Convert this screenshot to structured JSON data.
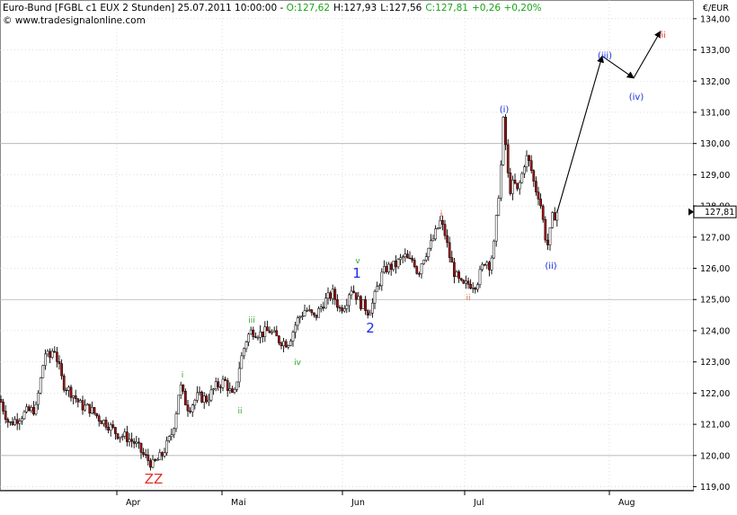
{
  "header": {
    "title_part": "Euro-Bund [FGBL c1 EUX  2 Stunden] 25.07.2011 10:00:00 - ",
    "ohlc_open": "O:127,62",
    "ohlc_high": "H:127,93",
    "ohlc_low": "L:127,56",
    "ohlc_close": "C:127,81",
    "change": "+0,26 +0,20%",
    "watermark": "© www.tradesignalonline.com"
  },
  "colors": {
    "up_green": "#19a319",
    "candle_up": "#ffffff",
    "candle_down": "#a01010",
    "wave_blue": "#1a2ee0",
    "wave_red": "#e0302a",
    "wave_green": "#2aa62a",
    "wave_orange": "#e06a3a",
    "grid": "#c9c9c9",
    "ref_lines": "#b0b0b0"
  },
  "axis": {
    "unit": "€/EUR",
    "last_price": "127,81",
    "y_ticks": [
      "134,00",
      "133,00",
      "132,00",
      "131,00",
      "130,00",
      "129,00",
      "128,00",
      "127,00",
      "126,00",
      "125,00",
      "124,00",
      "123,00",
      "122,00",
      "121,00",
      "120,00",
      "119,00"
    ],
    "x_ticks": [
      "Apr",
      "Mai",
      "Jun",
      "Jul",
      "Aug"
    ]
  },
  "wave_labels": {
    "zz": "ZZ",
    "green_i": "i",
    "green_ii": "ii",
    "green_iii": "iii",
    "green_iv": "iv",
    "green_v": "v",
    "blue_1": "1",
    "blue_2": "2",
    "red_i": "i",
    "red_ii": "ii",
    "red_iii": "iii",
    "blue_i": "(i)",
    "blue_ii": "(ii)",
    "blue_iii": "(iii)",
    "blue_iv": "(iv)"
  },
  "chart_data": {
    "type": "candlestick",
    "instrument": "Euro-Bund [FGBL c1 EUX  2 Stunden]",
    "ylim": [
      118.9,
      134.6
    ],
    "x_ticks": [
      "Apr",
      "Mai",
      "Jun",
      "Jul",
      "Aug"
    ],
    "y_ticks": [
      119,
      120,
      121,
      122,
      123,
      124,
      125,
      126,
      127,
      128,
      129,
      130,
      131,
      132,
      133,
      134
    ],
    "horizontal_lines": [
      130.0,
      125.0,
      120.0
    ],
    "last_value": 127.81,
    "price_path": [
      [
        0,
        121.8
      ],
      [
        10,
        121.0
      ],
      [
        20,
        121.2
      ],
      [
        30,
        121.4
      ],
      [
        40,
        121.5
      ],
      [
        50,
        123.3
      ],
      [
        55,
        123.1
      ],
      [
        60,
        123.5
      ],
      [
        65,
        122.9
      ],
      [
        70,
        122.3
      ],
      [
        80,
        122.0
      ],
      [
        90,
        121.6
      ],
      [
        100,
        121.5
      ],
      [
        110,
        121.2
      ],
      [
        120,
        121.0
      ],
      [
        130,
        120.7
      ],
      [
        140,
        120.6
      ],
      [
        150,
        120.4
      ],
      [
        160,
        120.0
      ],
      [
        170,
        119.7
      ],
      [
        180,
        120.0
      ],
      [
        190,
        120.6
      ],
      [
        195,
        121.2
      ],
      [
        200,
        122.3
      ],
      [
        205,
        121.8
      ],
      [
        210,
        121.5
      ],
      [
        220,
        121.9
      ],
      [
        230,
        121.8
      ],
      [
        240,
        122.2
      ],
      [
        250,
        122.4
      ],
      [
        260,
        121.8
      ],
      [
        265,
        122.7
      ],
      [
        270,
        123.3
      ],
      [
        275,
        123.8
      ],
      [
        280,
        124.0
      ],
      [
        290,
        123.9
      ],
      [
        300,
        124.0
      ],
      [
        310,
        123.7
      ],
      [
        320,
        123.6
      ],
      [
        325,
        123.9
      ],
      [
        330,
        124.3
      ],
      [
        340,
        124.7
      ],
      [
        350,
        124.4
      ],
      [
        360,
        124.9
      ],
      [
        370,
        125.2
      ],
      [
        378,
        124.7
      ],
      [
        385,
        124.9
      ],
      [
        390,
        125.4
      ],
      [
        395,
        125.2
      ],
      [
        400,
        124.9
      ],
      [
        405,
        124.8
      ],
      [
        410,
        124.6
      ],
      [
        415,
        124.9
      ],
      [
        420,
        125.4
      ],
      [
        425,
        125.8
      ],
      [
        430,
        126.0
      ],
      [
        440,
        126.1
      ],
      [
        450,
        126.4
      ],
      [
        455,
        126.2
      ],
      [
        460,
        126.3
      ],
      [
        465,
        125.8
      ],
      [
        470,
        126.3
      ],
      [
        480,
        126.8
      ],
      [
        490,
        127.5
      ],
      [
        495,
        127.1
      ],
      [
        500,
        126.4
      ],
      [
        505,
        125.9
      ],
      [
        510,
        125.6
      ],
      [
        515,
        125.4
      ],
      [
        520,
        125.5
      ],
      [
        530,
        125.5
      ],
      [
        535,
        125.9
      ],
      [
        540,
        126.3
      ],
      [
        545,
        126.1
      ],
      [
        550,
        126.8
      ],
      [
        553,
        127.8
      ],
      [
        556,
        128.8
      ],
      [
        558,
        129.5
      ],
      [
        560,
        130.7
      ],
      [
        562,
        130.2
      ],
      [
        565,
        129.0
      ],
      [
        568,
        128.5
      ],
      [
        572,
        128.8
      ],
      [
        575,
        128.4
      ],
      [
        580,
        128.9
      ],
      [
        585,
        129.6
      ],
      [
        590,
        129.3
      ],
      [
        595,
        128.6
      ],
      [
        600,
        128.3
      ],
      [
        603,
        127.8
      ],
      [
        606,
        127.1
      ],
      [
        610,
        126.7
      ],
      [
        614,
        127.6
      ],
      [
        620,
        127.81
      ]
    ],
    "projection_path": [
      [
        620,
        127.81
      ],
      [
        670,
        132.8
      ],
      [
        705,
        132.1
      ],
      [
        735,
        133.6
      ]
    ],
    "wave_labels": [
      {
        "text": "ZZ",
        "color": "#e0302a"
      },
      {
        "text": "i",
        "color": "#2aa62a"
      },
      {
        "text": "ii",
        "color": "#2aa62a"
      },
      {
        "text": "iii",
        "color": "#2aa62a"
      },
      {
        "text": "iv",
        "color": "#2aa62a"
      },
      {
        "text": "v",
        "color": "#2aa62a"
      },
      {
        "text": "1",
        "color": "#1a2ee0"
      },
      {
        "text": "2",
        "color": "#1a2ee0"
      },
      {
        "text": "i",
        "color": "#e0302a"
      },
      {
        "text": "ii",
        "color": "#e0302a"
      },
      {
        "text": "iii",
        "color": "#e0302a"
      },
      {
        "text": "(i)",
        "color": "#1a2ee0"
      },
      {
        "text": "(ii)",
        "color": "#1a2ee0"
      },
      {
        "text": "(iii)",
        "color": "#1a2ee0"
      },
      {
        "text": "(iv)",
        "color": "#1a2ee0"
      }
    ]
  }
}
